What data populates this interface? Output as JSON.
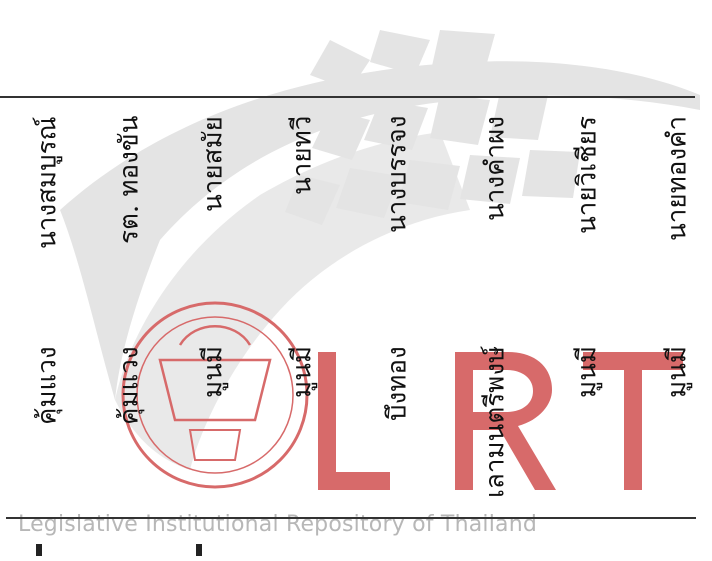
{
  "watermark": {
    "text": "Legislative Institutional Repository of Thailand",
    "letters": [
      "L",
      "R",
      "T"
    ],
    "colors": {
      "logo": "#d76a6a",
      "shape": "#e3e3e3",
      "text": "#b7b7b7"
    }
  },
  "table": {
    "rows": [
      {
        "name": "นางสมบูรณ์",
        "place": "คุ้มแวง"
      },
      {
        "name": "รต. ทองขัน",
        "place": "คุ้มแวง"
      },
      {
        "name": "นายสมัย",
        "place": "มูนมี"
      },
      {
        "name": "นายทวี",
        "place": "มูนมี"
      },
      {
        "name": "นางบรรจง",
        "place": "บึงทอง"
      },
      {
        "name": "นางคำผง",
        "place": "เลามนตรีพงษ์"
      },
      {
        "name": "นายวิเชียร",
        "place": "มูนมี"
      },
      {
        "name": "นายทองคำ",
        "place": "มูนมี"
      }
    ]
  }
}
